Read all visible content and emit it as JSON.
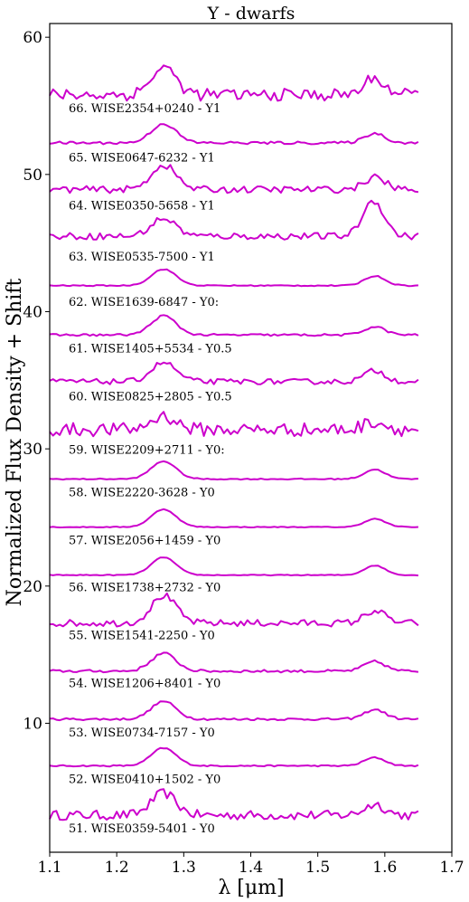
{
  "chart_data": {
    "type": "line",
    "title": "Y - dwarfs",
    "xlabel": "λ [μm]",
    "ylabel": "Normalized Flux Density + Shift",
    "xlim": [
      1.1,
      1.7
    ],
    "ylim": [
      0.6,
      61
    ],
    "xticks": [
      "1.1",
      "1.2",
      "1.3",
      "1.4",
      "1.5",
      "1.6",
      "1.7"
    ],
    "yticks": [
      "10",
      "20",
      "30",
      "40",
      "50",
      "60"
    ],
    "grid": false,
    "legend": "none",
    "line_color": "#cc00cc",
    "x_range_data": [
      1.1,
      1.65
    ],
    "series": [
      {
        "name": "51. WISE0359-5401 - Y0",
        "baseline": 3.3,
        "j_peak": 1.6,
        "h_peak": 0.8,
        "noise": 0.35,
        "h_center": 1.585,
        "label_y": 2.3
      },
      {
        "name": "52. WISE0410+1502 - Y0",
        "baseline": 6.9,
        "j_peak": 1.3,
        "h_peak": 0.6,
        "noise": 0.05,
        "h_center": 1.585,
        "label_y": 5.9
      },
      {
        "name": "53. WISE0734-7157 - Y0",
        "baseline": 10.3,
        "j_peak": 1.3,
        "h_peak": 0.7,
        "noise": 0.08,
        "h_center": 1.585,
        "label_y": 9.3
      },
      {
        "name": "54. WISE1206+8401 - Y0",
        "baseline": 13.8,
        "j_peak": 1.3,
        "h_peak": 0.7,
        "noise": 0.1,
        "h_center": 1.585,
        "label_y": 12.9
      },
      {
        "name": "55. WISE1541-2250 - Y0",
        "baseline": 17.3,
        "j_peak": 2.0,
        "h_peak": 0.9,
        "noise": 0.25,
        "h_center": 1.585,
        "label_y": 16.4
      },
      {
        "name": "56. WISE1738+2732 - Y0",
        "baseline": 20.8,
        "j_peak": 1.3,
        "h_peak": 0.7,
        "noise": 0.03,
        "h_center": 1.585,
        "label_y": 19.9
      },
      {
        "name": "57. WISE2056+1459 - Y0",
        "baseline": 24.3,
        "j_peak": 1.3,
        "h_peak": 0.6,
        "noise": 0.03,
        "h_center": 1.585,
        "label_y": 23.3
      },
      {
        "name": "58. WISE2220-3628 - Y0",
        "baseline": 27.8,
        "j_peak": 1.3,
        "h_peak": 0.7,
        "noise": 0.04,
        "h_center": 1.585,
        "label_y": 26.8
      },
      {
        "name": "59. WISE2209+2711 - Y0:",
        "baseline": 31.4,
        "j_peak": 1.0,
        "h_peak": 0.6,
        "noise": 0.5,
        "h_center": 1.585,
        "label_y": 29.9
      },
      {
        "name": "60. WISE0825+2805 - Y0.5",
        "baseline": 34.9,
        "j_peak": 1.4,
        "h_peak": 0.8,
        "noise": 0.2,
        "h_center": 1.585,
        "label_y": 33.8
      },
      {
        "name": "61. WISE1405+5534 - Y0.5",
        "baseline": 38.3,
        "j_peak": 1.4,
        "h_peak": 0.6,
        "noise": 0.08,
        "h_center": 1.585,
        "label_y": 37.3
      },
      {
        "name": "62. WISE1639-6847 - Y0:",
        "baseline": 41.9,
        "j_peak": 1.2,
        "h_peak": 0.7,
        "noise": 0.04,
        "h_center": 1.585,
        "label_y": 40.7
      },
      {
        "name": "63. WISE0535-7500 - Y1",
        "baseline": 45.5,
        "j_peak": 1.3,
        "h_peak": 2.6,
        "noise": 0.25,
        "h_center": 1.583,
        "label_y": 44.0
      },
      {
        "name": "64. WISE0350-5658 - Y1",
        "baseline": 48.9,
        "j_peak": 1.8,
        "h_peak": 0.9,
        "noise": 0.25,
        "h_center": 1.585,
        "label_y": 47.7
      },
      {
        "name": "65. WISE0647-6232 - Y1",
        "baseline": 52.3,
        "j_peak": 1.4,
        "h_peak": 0.7,
        "noise": 0.1,
        "h_center": 1.585,
        "label_y": 51.2
      },
      {
        "name": "66. WISE2354+0240 - Y1",
        "baseline": 55.8,
        "j_peak": 2.0,
        "h_peak": 1.2,
        "noise": 0.45,
        "h_center": 1.585,
        "label_y": 54.8
      }
    ]
  }
}
